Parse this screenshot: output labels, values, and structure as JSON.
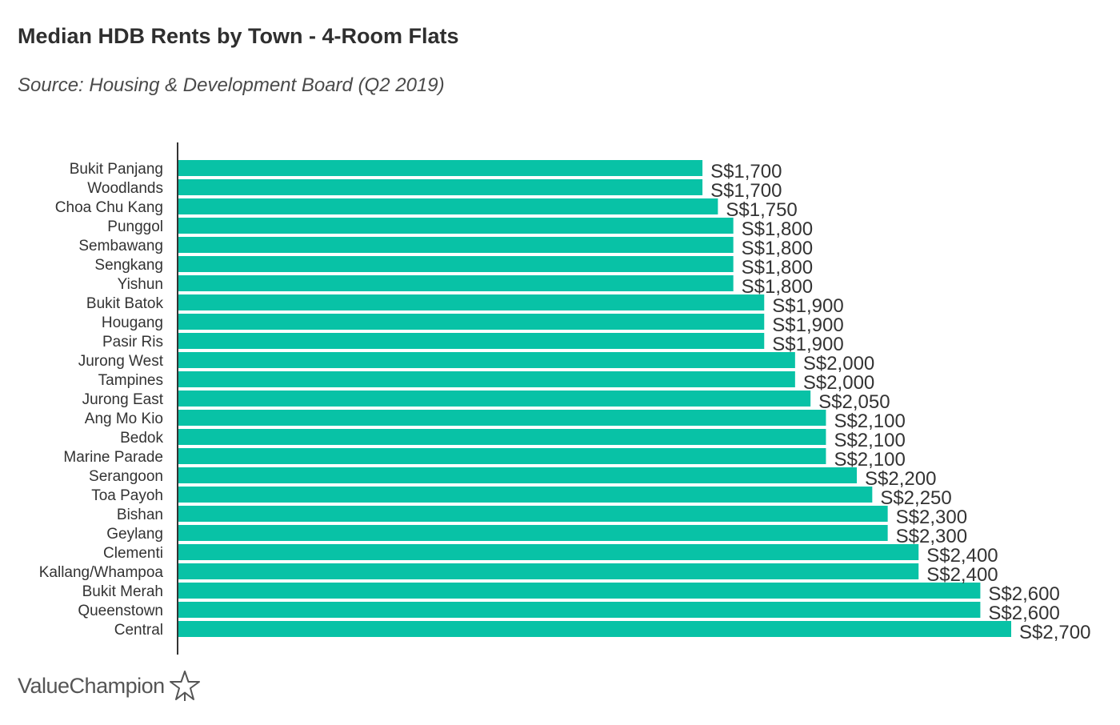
{
  "title": "Median HDB Rents by Town - 4-Room Flats",
  "subtitle": "Source: Housing & Development Board (Q2 2019)",
  "logo_text": "ValueChampion",
  "colors": {
    "bar": "#08c2a6",
    "axis": "#333333",
    "label": "#333333"
  },
  "chart_data": {
    "type": "bar",
    "orientation": "horizontal",
    "title": "Median HDB Rents by Town - 4-Room Flats",
    "subtitle": "Source: Housing & Development Board (Q2 2019)",
    "value_prefix": "S$",
    "xlim": [
      0,
      2700
    ],
    "grid": false,
    "categories": [
      "Bukit Panjang",
      "Woodlands",
      "Choa Chu Kang",
      "Punggol",
      "Sembawang",
      "Sengkang",
      "Yishun",
      "Bukit Batok",
      "Hougang",
      "Pasir Ris",
      "Jurong West",
      "Tampines",
      "Jurong East",
      "Ang Mo Kio",
      "Bedok",
      "Marine Parade",
      "Serangoon",
      "Toa Payoh",
      "Bishan",
      "Geylang",
      "Clementi",
      "Kallang/Whampoa",
      "Bukit Merah",
      "Queenstown",
      "Central"
    ],
    "values": [
      1700,
      1700,
      1750,
      1800,
      1800,
      1800,
      1800,
      1900,
      1900,
      1900,
      2000,
      2000,
      2050,
      2100,
      2100,
      2100,
      2200,
      2250,
      2300,
      2300,
      2400,
      2400,
      2600,
      2600,
      2700
    ],
    "data_labels": [
      "S$1,700",
      "S$1,700",
      "S$1,750",
      "S$1,800",
      "S$1,800",
      "S$1,800",
      "S$1,800",
      "S$1,900",
      "S$1,900",
      "S$1,900",
      "S$2,000",
      "S$2,000",
      "S$2,050",
      "S$2,100",
      "S$2,100",
      "S$2,100",
      "S$2,200",
      "S$2,250",
      "S$2,300",
      "S$2,300",
      "S$2,400",
      "S$2,400",
      "S$2,600",
      "S$2,600",
      "S$2,700"
    ]
  }
}
